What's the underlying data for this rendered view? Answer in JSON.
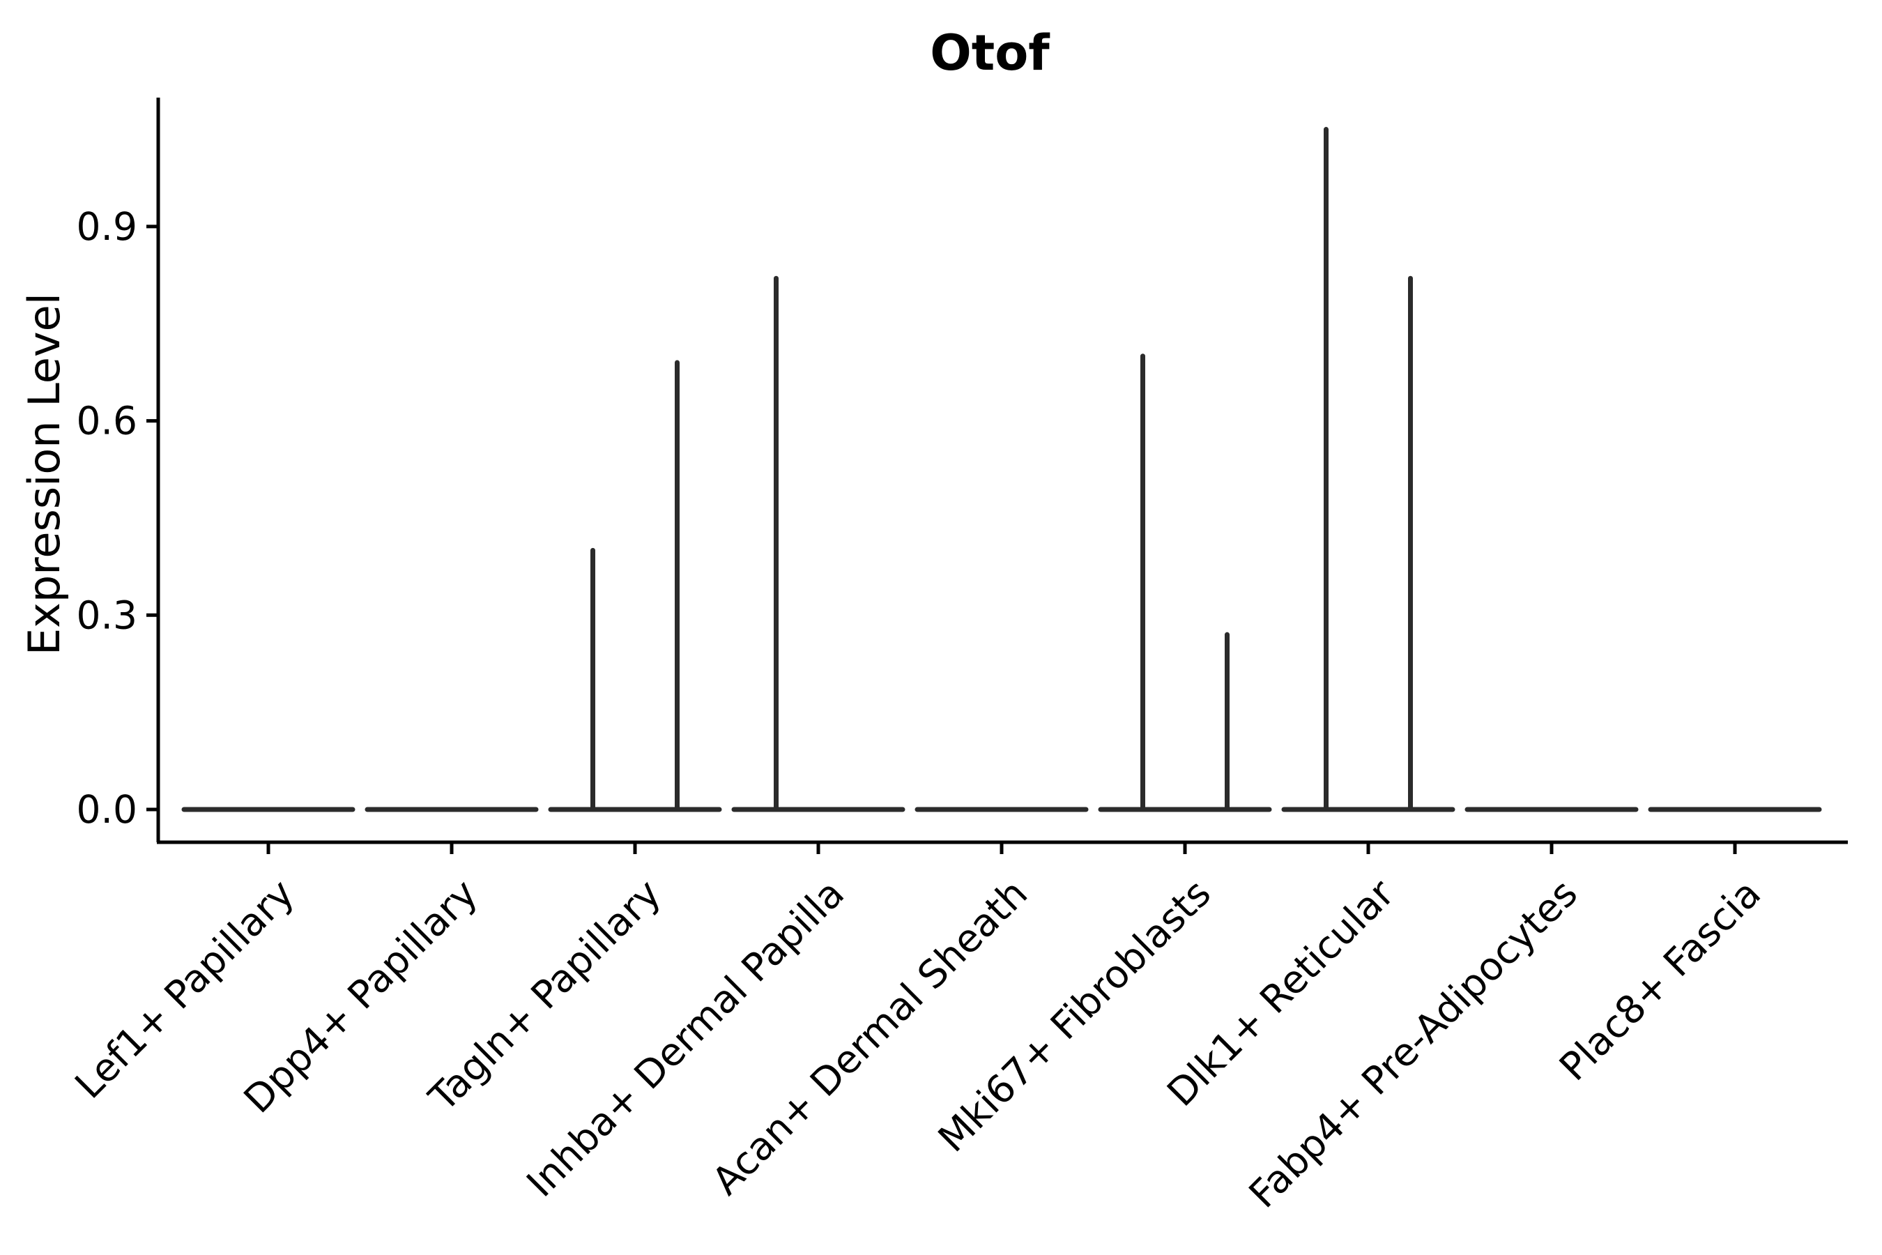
{
  "title": "Otof",
  "axes": {
    "ylabel": "Expression Level",
    "xlabel": "",
    "ytick_labels": [
      "0.0",
      "0.3",
      "0.6",
      "0.9"
    ]
  },
  "chart_data": {
    "type": "violin",
    "title": "Otof",
    "xlabel": "",
    "ylabel": "Expression Level",
    "ylim": [
      0,
      1.1
    ],
    "yticks": [
      0.0,
      0.3,
      0.6,
      0.9
    ],
    "grid": false,
    "legend": "none",
    "categories": [
      "Lef1+ Papillary",
      "Dpp4+ Papillary",
      "Tagln+ Papillary",
      "Inhba+ Dermal Papilla",
      "Acan+ Dermal Sheath",
      "Mki67+ Fibroblasts",
      "Dlk1+ Reticular",
      "Fabp4+ Pre-Adipocytes",
      "Plac8+ Fascia"
    ],
    "violins": [
      {
        "category": "Lef1+ Papillary",
        "spike_maxima": [
          0,
          0
        ]
      },
      {
        "category": "Dpp4+ Papillary",
        "spike_maxima": [
          0,
          0
        ]
      },
      {
        "category": "Tagln+ Papillary",
        "spike_maxima": [
          0.4,
          0.69
        ]
      },
      {
        "category": "Inhba+ Dermal Papilla",
        "spike_maxima": [
          0.82,
          0
        ]
      },
      {
        "category": "Acan+ Dermal Sheath",
        "spike_maxima": [
          0,
          0
        ]
      },
      {
        "category": "Mki67+ Fibroblasts",
        "spike_maxima": [
          0.7,
          0.27
        ]
      },
      {
        "category": "Dlk1+ Reticular",
        "spike_maxima": [
          1.05,
          0.82
        ]
      },
      {
        "category": "Fabp4+ Pre-Adipocytes",
        "spike_maxima": [
          0,
          0
        ]
      },
      {
        "category": "Plac8+ Fascia",
        "spike_maxima": [
          0,
          0
        ]
      }
    ],
    "baseline_value": 0,
    "colors": {
      "violin_stroke": "#2b2b2b",
      "axis": "#000000",
      "text": "#000000",
      "background": "#ffffff"
    }
  }
}
